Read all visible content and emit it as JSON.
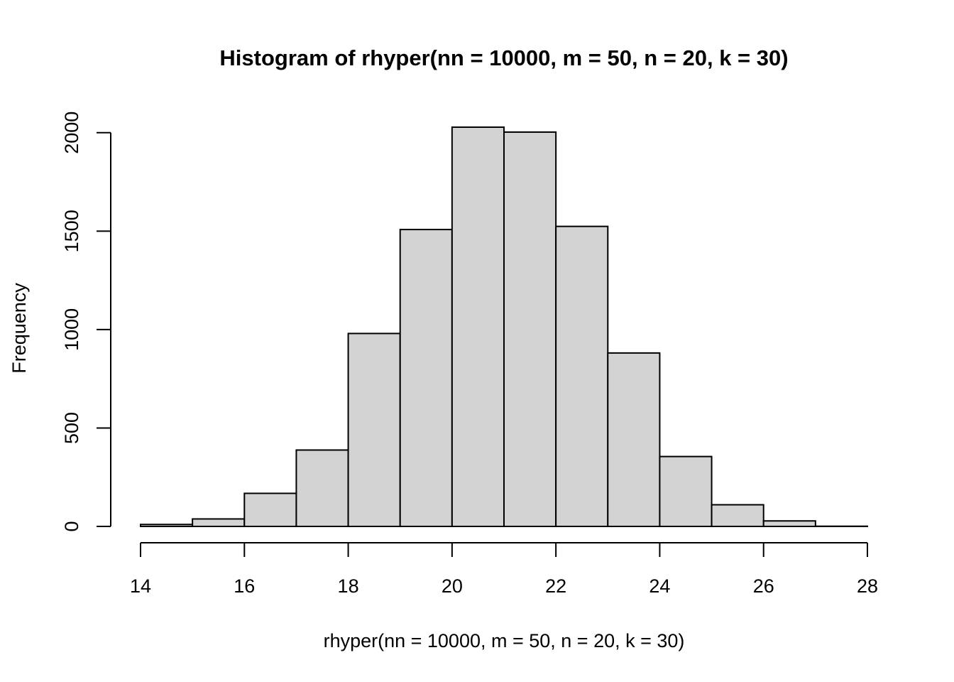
{
  "chart_data": {
    "type": "bar",
    "title": "Histogram of rhyper(nn = 10000, m = 50, n = 20, k = 30)",
    "xlabel": "rhyper(nn = 10000, m = 50, n = 20, k = 30)",
    "ylabel": "Frequency",
    "bins": [
      {
        "start": 14,
        "end": 15,
        "count": 10
      },
      {
        "start": 15,
        "end": 16,
        "count": 38
      },
      {
        "start": 16,
        "end": 17,
        "count": 168
      },
      {
        "start": 17,
        "end": 18,
        "count": 388
      },
      {
        "start": 18,
        "end": 19,
        "count": 980
      },
      {
        "start": 19,
        "end": 20,
        "count": 1508
      },
      {
        "start": 20,
        "end": 21,
        "count": 2028
      },
      {
        "start": 21,
        "end": 22,
        "count": 2003
      },
      {
        "start": 22,
        "end": 23,
        "count": 1524
      },
      {
        "start": 23,
        "end": 24,
        "count": 881
      },
      {
        "start": 24,
        "end": 25,
        "count": 355
      },
      {
        "start": 25,
        "end": 26,
        "count": 110
      },
      {
        "start": 26,
        "end": 27,
        "count": 28
      },
      {
        "start": 27,
        "end": 28,
        "count": 1
      }
    ],
    "xlim": [
      14,
      28
    ],
    "ylim": [
      0,
      2028
    ],
    "x_ticks": [
      "14",
      "16",
      "18",
      "20",
      "22",
      "24",
      "26",
      "28"
    ],
    "y_ticks": [
      "0",
      "500",
      "1000",
      "1500",
      "2000"
    ],
    "bar_color": "#d3d3d3",
    "grid": false,
    "legend": "none"
  }
}
